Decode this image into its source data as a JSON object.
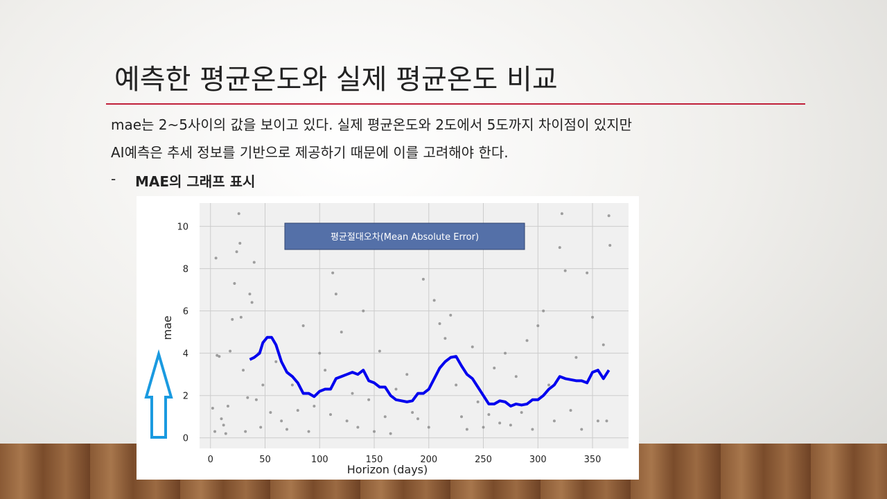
{
  "slide": {
    "title": "예측한 평균온도와 실제 평균온도 비교",
    "body": [
      "mae는 2~5사이의 값을 보이고 있다. 실제 평균온도와 2도에서 5도까지 차이점이 있지만",
      "AI예측은 추세 정보를 기반으로 제공하기 때문에 이를 고려해야 한다."
    ],
    "bullet": "MAE의 그래프 표시"
  },
  "chart_data": {
    "type": "scatter",
    "annotation": "평균절대오차(Mean Absolute Error)",
    "xlabel": "Horizon (days)",
    "ylabel": "mae",
    "xlim": [
      -10,
      383
    ],
    "ylim": [
      -0.5,
      11.1
    ],
    "xticks": [
      0,
      50,
      100,
      150,
      200,
      250,
      300,
      350
    ],
    "yticks": [
      0,
      2,
      4,
      6,
      8,
      10
    ],
    "grid": true,
    "points": {
      "color": "#888888",
      "x": [
        2,
        4,
        5,
        6,
        8,
        10,
        12,
        14,
        16,
        18,
        20,
        22,
        24,
        26,
        27,
        28,
        30,
        32,
        34,
        36,
        38,
        40,
        42,
        44,
        46,
        48,
        55,
        60,
        65,
        70,
        75,
        80,
        85,
        90,
        95,
        100,
        105,
        110,
        112,
        115,
        120,
        125,
        130,
        135,
        140,
        145,
        150,
        155,
        160,
        165,
        170,
        180,
        185,
        190,
        195,
        200,
        205,
        210,
        215,
        220,
        225,
        230,
        235,
        240,
        245,
        250,
        255,
        260,
        265,
        270,
        275,
        280,
        285,
        290,
        295,
        300,
        305,
        310,
        315,
        320,
        322,
        325,
        330,
        335,
        340,
        345,
        350,
        355,
        360,
        363,
        365,
        366
      ],
      "values": [
        1.4,
        0.3,
        8.5,
        3.9,
        3.85,
        0.9,
        0.6,
        0.2,
        1.5,
        4.1,
        5.6,
        7.3,
        8.8,
        10.6,
        9.2,
        5.7,
        3.2,
        0.3,
        1.9,
        6.8,
        6.4,
        8.3,
        1.8,
        4.0,
        0.5,
        2.5,
        1.2,
        3.6,
        0.8,
        0.4,
        2.5,
        1.3,
        5.3,
        0.3,
        1.5,
        4.0,
        3.2,
        1.1,
        7.8,
        6.8,
        5.0,
        0.8,
        2.1,
        0.5,
        6.0,
        1.8,
        0.3,
        4.1,
        1.0,
        0.2,
        2.3,
        3.0,
        1.2,
        0.9,
        7.5,
        0.5,
        6.5,
        5.4,
        4.7,
        5.8,
        2.5,
        1.0,
        0.4,
        4.3,
        1.7,
        0.5,
        1.1,
        3.3,
        0.7,
        4.0,
        0.6,
        2.9,
        1.2,
        4.6,
        0.4,
        5.3,
        6.0,
        2.5,
        0.8,
        9.0,
        10.6,
        7.9,
        1.3,
        3.8,
        0.4,
        7.8,
        5.7,
        0.8,
        4.4,
        0.8,
        10.5,
        9.1
      ]
    },
    "line": {
      "color": "#0000ee",
      "x": [
        36,
        40,
        45,
        48,
        52,
        56,
        60,
        65,
        70,
        75,
        80,
        85,
        90,
        95,
        100,
        105,
        110,
        115,
        120,
        125,
        130,
        135,
        140,
        145,
        150,
        155,
        160,
        165,
        170,
        175,
        180,
        185,
        190,
        195,
        200,
        205,
        210,
        215,
        220,
        225,
        230,
        235,
        240,
        245,
        250,
        255,
        260,
        265,
        270,
        275,
        280,
        285,
        290,
        295,
        300,
        305,
        310,
        315,
        320,
        325,
        330,
        335,
        340,
        345,
        350,
        355,
        360,
        365
      ],
      "values": [
        3.7,
        3.8,
        4.0,
        4.5,
        4.75,
        4.75,
        4.4,
        3.6,
        3.1,
        2.9,
        2.6,
        2.1,
        2.1,
        1.95,
        2.2,
        2.3,
        2.3,
        2.8,
        2.9,
        3.0,
        3.1,
        3.0,
        3.2,
        2.7,
        2.6,
        2.4,
        2.4,
        2.0,
        1.8,
        1.75,
        1.7,
        1.75,
        2.1,
        2.1,
        2.3,
        2.8,
        3.3,
        3.6,
        3.8,
        3.85,
        3.4,
        3.0,
        2.8,
        2.4,
        2.0,
        1.6,
        1.6,
        1.75,
        1.7,
        1.5,
        1.6,
        1.55,
        1.6,
        1.8,
        1.8,
        2.0,
        2.3,
        2.5,
        2.9,
        2.8,
        2.75,
        2.7,
        2.7,
        2.6,
        3.1,
        3.2,
        2.8,
        3.2
      ]
    }
  }
}
